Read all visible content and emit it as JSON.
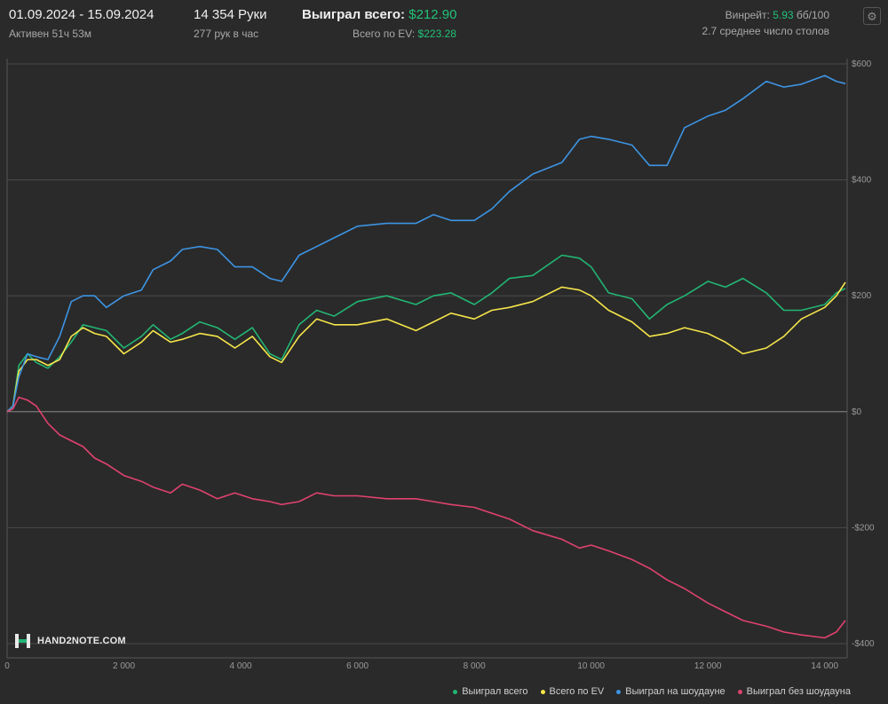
{
  "header": {
    "date_range": "01.09.2024 - 15.09.2024",
    "active": "Активен 51ч 53м",
    "hands": "14 354 Руки",
    "hands_per_hour": "277 рук в час",
    "won_total_label": "Выиграл всего:",
    "won_total_value": "$212.90",
    "ev_total_label": "Всего по EV:",
    "ev_total_value": "$223.28",
    "winrate_label": "Винрейт:",
    "winrate_value": "5.93",
    "winrate_unit": "бб/100",
    "tables_avg": "2.7 среднее число столов",
    "settings_icon": "gear-icon"
  },
  "logo": {
    "text": "HAND2NOTE.COM"
  },
  "chart_data": {
    "type": "line",
    "xlim": [
      0,
      14354
    ],
    "ylim": [
      -400,
      600
    ],
    "x_ticks": [
      0,
      2000,
      4000,
      6000,
      8000,
      10000,
      12000,
      14000
    ],
    "x_tick_labels": [
      "0",
      "2 000",
      "4 000",
      "6 000",
      "8 000",
      "10 000",
      "12 000",
      "14 000"
    ],
    "y_ticks": [
      600,
      400,
      200,
      0,
      -200,
      -400
    ],
    "y_tick_labels": [
      "$600",
      "$400",
      "$200",
      "$0",
      "-$200",
      "-$400"
    ],
    "grid": "horizontal",
    "legend_position": "bottom-right",
    "x": [
      0,
      100,
      200,
      350,
      500,
      700,
      900,
      1100,
      1300,
      1500,
      1700,
      2000,
      2300,
      2500,
      2800,
      3000,
      3300,
      3600,
      3900,
      4200,
      4500,
      4700,
      5000,
      5300,
      5600,
      6000,
      6500,
      7000,
      7300,
      7600,
      8000,
      8300,
      8600,
      9000,
      9500,
      9800,
      10000,
      10300,
      10700,
      11000,
      11300,
      11600,
      12000,
      12300,
      12600,
      13000,
      13300,
      13600,
      14000,
      14200,
      14354
    ],
    "series": [
      {
        "name": "Выиграл всего",
        "color": "#22b573",
        "values": [
          0,
          10,
          80,
          100,
          85,
          75,
          95,
          120,
          150,
          145,
          140,
          110,
          130,
          150,
          125,
          135,
          155,
          145,
          125,
          145,
          100,
          90,
          150,
          175,
          165,
          190,
          200,
          185,
          200,
          205,
          185,
          205,
          230,
          235,
          270,
          265,
          250,
          205,
          195,
          160,
          185,
          200,
          225,
          215,
          230,
          205,
          175,
          175,
          185,
          205,
          212.9
        ]
      },
      {
        "name": "Всего по EV",
        "color": "#f5e54a",
        "values": [
          0,
          10,
          70,
          90,
          90,
          80,
          90,
          130,
          145,
          135,
          130,
          100,
          120,
          140,
          120,
          125,
          135,
          130,
          110,
          130,
          95,
          85,
          130,
          160,
          150,
          150,
          160,
          140,
          155,
          170,
          160,
          175,
          180,
          190,
          215,
          210,
          200,
          175,
          155,
          130,
          135,
          145,
          135,
          120,
          100,
          110,
          130,
          160,
          180,
          200,
          223.28
        ]
      },
      {
        "name": "Выиграл на шоудауне",
        "color": "#3d94e3",
        "values": [
          0,
          10,
          60,
          100,
          95,
          90,
          130,
          190,
          200,
          200,
          180,
          200,
          210,
          245,
          260,
          280,
          285,
          280,
          250,
          250,
          230,
          225,
          270,
          285,
          300,
          320,
          325,
          325,
          340,
          330,
          330,
          350,
          380,
          410,
          430,
          470,
          475,
          470,
          460,
          425,
          425,
          490,
          510,
          520,
          540,
          570,
          560,
          565,
          580,
          570,
          566
        ]
      },
      {
        "name": "Выиграл без шоудауна",
        "color": "#e0426f",
        "values": [
          0,
          5,
          25,
          20,
          10,
          -20,
          -40,
          -50,
          -60,
          -80,
          -90,
          -110,
          -120,
          -130,
          -140,
          -125,
          -135,
          -150,
          -140,
          -150,
          -155,
          -160,
          -155,
          -140,
          -145,
          -145,
          -150,
          -150,
          -155,
          -160,
          -165,
          -175,
          -185,
          -205,
          -220,
          -235,
          -230,
          -240,
          -255,
          -270,
          -290,
          -305,
          -330,
          -345,
          -360,
          -370,
          -380,
          -385,
          -390,
          -380,
          -360
        ]
      }
    ]
  }
}
